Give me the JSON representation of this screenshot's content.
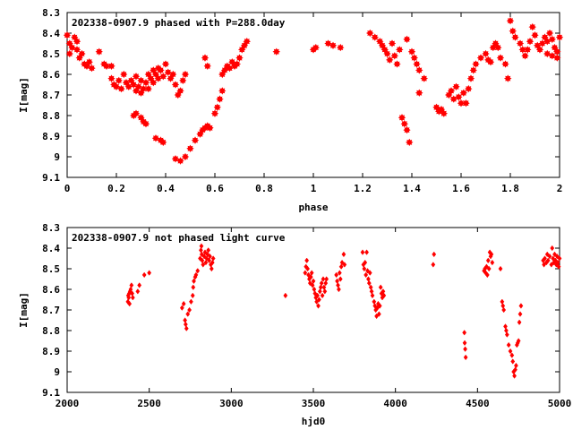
{
  "chart_data": [
    {
      "type": "scatter",
      "title": "202338-0907.9 phased with P=288.0day",
      "xlabel": "phase",
      "ylabel": "I[mag]",
      "xlim": [
        0,
        2
      ],
      "ylim": [
        9.1,
        8.3
      ],
      "y_inverted": true,
      "grid": false,
      "marker_color": "#ff0000",
      "marker": "filled-star",
      "x_ticks": [
        "0",
        "0.2",
        "0.4",
        "0.6",
        "0.8",
        "1",
        "1.2",
        "1.4",
        "1.6",
        "1.8",
        "2"
      ],
      "y_ticks": [
        "8.3",
        "8.4",
        "8.5",
        "8.6",
        "8.7",
        "8.8",
        "8.9",
        "9",
        "9.1"
      ],
      "points": [
        [
          0.0,
          8.41
        ],
        [
          0.01,
          8.45
        ],
        [
          0.01,
          8.5
        ],
        [
          0.02,
          8.47
        ],
        [
          0.03,
          8.42
        ],
        [
          0.04,
          8.44
        ],
        [
          0.04,
          8.48
        ],
        [
          0.05,
          8.52
        ],
        [
          0.06,
          8.5
        ],
        [
          0.07,
          8.55
        ],
        [
          0.08,
          8.56
        ],
        [
          0.09,
          8.54
        ],
        [
          0.1,
          8.57
        ],
        [
          0.13,
          8.49
        ],
        [
          0.15,
          8.55
        ],
        [
          0.16,
          8.56
        ],
        [
          0.18,
          8.56
        ],
        [
          0.18,
          8.62
        ],
        [
          0.19,
          8.65
        ],
        [
          0.2,
          8.66
        ],
        [
          0.21,
          8.63
        ],
        [
          0.22,
          8.67
        ],
        [
          0.23,
          8.6
        ],
        [
          0.24,
          8.64
        ],
        [
          0.25,
          8.66
        ],
        [
          0.26,
          8.63
        ],
        [
          0.27,
          8.65
        ],
        [
          0.28,
          8.61
        ],
        [
          0.28,
          8.68
        ],
        [
          0.29,
          8.66
        ],
        [
          0.3,
          8.63
        ],
        [
          0.3,
          8.69
        ],
        [
          0.31,
          8.67
        ],
        [
          0.32,
          8.64
        ],
        [
          0.33,
          8.6
        ],
        [
          0.33,
          8.67
        ],
        [
          0.34,
          8.62
        ],
        [
          0.35,
          8.58
        ],
        [
          0.35,
          8.64
        ],
        [
          0.36,
          8.6
        ],
        [
          0.37,
          8.57
        ],
        [
          0.37,
          8.62
        ],
        [
          0.38,
          8.58
        ],
        [
          0.39,
          8.61
        ],
        [
          0.4,
          8.55
        ],
        [
          0.41,
          8.59
        ],
        [
          0.42,
          8.62
        ],
        [
          0.43,
          8.6
        ],
        [
          0.44,
          8.65
        ],
        [
          0.45,
          8.7
        ],
        [
          0.46,
          8.68
        ],
        [
          0.47,
          8.63
        ],
        [
          0.48,
          8.6
        ],
        [
          0.27,
          8.8
        ],
        [
          0.28,
          8.79
        ],
        [
          0.3,
          8.81
        ],
        [
          0.31,
          8.83
        ],
        [
          0.32,
          8.84
        ],
        [
          0.36,
          8.91
        ],
        [
          0.38,
          8.92
        ],
        [
          0.39,
          8.93
        ],
        [
          0.44,
          9.01
        ],
        [
          0.46,
          9.02
        ],
        [
          0.48,
          9.0
        ],
        [
          0.5,
          8.96
        ],
        [
          0.52,
          8.92
        ],
        [
          0.54,
          8.89
        ],
        [
          0.55,
          8.87
        ],
        [
          0.56,
          8.86
        ],
        [
          0.57,
          8.85
        ],
        [
          0.58,
          8.86
        ],
        [
          0.6,
          8.79
        ],
        [
          0.61,
          8.76
        ],
        [
          0.62,
          8.72
        ],
        [
          0.63,
          8.68
        ],
        [
          0.63,
          8.6
        ],
        [
          0.64,
          8.58
        ],
        [
          0.65,
          8.56
        ],
        [
          0.66,
          8.57
        ],
        [
          0.67,
          8.54
        ],
        [
          0.68,
          8.56
        ],
        [
          0.69,
          8.55
        ],
        [
          0.7,
          8.52
        ],
        [
          0.71,
          8.48
        ],
        [
          0.72,
          8.46
        ],
        [
          0.73,
          8.44
        ],
        [
          0.56,
          8.52
        ],
        [
          0.57,
          8.56
        ],
        [
          0.85,
          8.49
        ],
        [
          1.0,
          8.48
        ],
        [
          1.01,
          8.47
        ],
        [
          1.06,
          8.45
        ],
        [
          1.08,
          8.46
        ],
        [
          1.11,
          8.47
        ],
        [
          1.23,
          8.4
        ],
        [
          1.25,
          8.42
        ],
        [
          1.27,
          8.44
        ],
        [
          1.28,
          8.46
        ],
        [
          1.29,
          8.48
        ],
        [
          1.3,
          8.5
        ],
        [
          1.31,
          8.53
        ],
        [
          1.32,
          8.45
        ],
        [
          1.33,
          8.51
        ],
        [
          1.34,
          8.55
        ],
        [
          1.35,
          8.48
        ],
        [
          1.36,
          8.81
        ],
        [
          1.37,
          8.84
        ],
        [
          1.38,
          8.87
        ],
        [
          1.39,
          8.93
        ],
        [
          1.38,
          8.43
        ],
        [
          1.4,
          8.49
        ],
        [
          1.41,
          8.52
        ],
        [
          1.42,
          8.55
        ],
        [
          1.43,
          8.58
        ],
        [
          1.43,
          8.69
        ],
        [
          1.45,
          8.62
        ],
        [
          1.5,
          8.76
        ],
        [
          1.51,
          8.78
        ],
        [
          1.52,
          8.77
        ],
        [
          1.53,
          8.79
        ],
        [
          1.55,
          8.7
        ],
        [
          1.56,
          8.68
        ],
        [
          1.57,
          8.72
        ],
        [
          1.58,
          8.66
        ],
        [
          1.59,
          8.71
        ],
        [
          1.6,
          8.74
        ],
        [
          1.61,
          8.69
        ],
        [
          1.62,
          8.74
        ],
        [
          1.63,
          8.67
        ],
        [
          1.64,
          8.62
        ],
        [
          1.65,
          8.58
        ],
        [
          1.66,
          8.55
        ],
        [
          1.68,
          8.52
        ],
        [
          1.7,
          8.5
        ],
        [
          1.71,
          8.53
        ],
        [
          1.72,
          8.54
        ],
        [
          1.73,
          8.47
        ],
        [
          1.74,
          8.45
        ],
        [
          1.75,
          8.47
        ],
        [
          1.76,
          8.52
        ],
        [
          1.78,
          8.55
        ],
        [
          1.79,
          8.62
        ],
        [
          1.8,
          8.34
        ],
        [
          1.81,
          8.39
        ],
        [
          1.82,
          8.42
        ],
        [
          1.84,
          8.45
        ],
        [
          1.85,
          8.48
        ],
        [
          1.86,
          8.51
        ],
        [
          1.87,
          8.48
        ],
        [
          1.88,
          8.44
        ],
        [
          1.89,
          8.37
        ],
        [
          1.9,
          8.41
        ],
        [
          1.91,
          8.46
        ],
        [
          1.92,
          8.48
        ],
        [
          1.93,
          8.45
        ],
        [
          1.94,
          8.42
        ],
        [
          1.95,
          8.44
        ],
        [
          1.96,
          8.4
        ],
        [
          1.97,
          8.43
        ],
        [
          1.97,
          8.51
        ],
        [
          1.98,
          8.47
        ],
        [
          1.99,
          8.49
        ],
        [
          1.99,
          8.52
        ],
        [
          2.0,
          8.42
        ],
        [
          1.95,
          8.5
        ]
      ]
    },
    {
      "type": "scatter",
      "title": "202338-0907.9 not phased light curve",
      "xlabel": "hjd0",
      "ylabel": "I[mag]",
      "xlim": [
        2000,
        5000
      ],
      "ylim": [
        9.1,
        8.3
      ],
      "y_inverted": true,
      "grid": false,
      "marker_color": "#ff0000",
      "marker": "filled-diamond",
      "x_ticks": [
        "2000",
        "2500",
        "3000",
        "3500",
        "4000",
        "4500",
        "5000"
      ],
      "y_ticks": [
        "8.3",
        "8.4",
        "8.5",
        "8.6",
        "8.7",
        "8.8",
        "8.9",
        "9",
        "9.1"
      ],
      "points": [
        [
          2370,
          8.66
        ],
        [
          2372,
          8.63
        ],
        [
          2375,
          8.64
        ],
        [
          2378,
          8.62
        ],
        [
          2380,
          8.67
        ],
        [
          2383,
          8.61
        ],
        [
          2387,
          8.6
        ],
        [
          2392,
          8.58
        ],
        [
          2396,
          8.62
        ],
        [
          2400,
          8.64
        ],
        [
          2430,
          8.61
        ],
        [
          2440,
          8.58
        ],
        [
          2470,
          8.53
        ],
        [
          2500,
          8.52
        ],
        [
          2700,
          8.69
        ],
        [
          2710,
          8.67
        ],
        [
          2718,
          8.75
        ],
        [
          2722,
          8.77
        ],
        [
          2727,
          8.79
        ],
        [
          2735,
          8.72
        ],
        [
          2745,
          8.7
        ],
        [
          2755,
          8.66
        ],
        [
          2765,
          8.63
        ],
        [
          2768,
          8.59
        ],
        [
          2772,
          8.56
        ],
        [
          2780,
          8.54
        ],
        [
          2785,
          8.53
        ],
        [
          2795,
          8.51
        ],
        [
          2810,
          8.45
        ],
        [
          2815,
          8.41
        ],
        [
          2818,
          8.39
        ],
        [
          2820,
          8.43
        ],
        [
          2823,
          8.46
        ],
        [
          2828,
          8.48
        ],
        [
          2835,
          8.44
        ],
        [
          2840,
          8.42
        ],
        [
          2845,
          8.47
        ],
        [
          2850,
          8.45
        ],
        [
          2855,
          8.43
        ],
        [
          2860,
          8.41
        ],
        [
          2865,
          8.46
        ],
        [
          2870,
          8.44
        ],
        [
          2875,
          8.48
        ],
        [
          2880,
          8.5
        ],
        [
          2885,
          8.47
        ],
        [
          2890,
          8.45
        ],
        [
          3330,
          8.63
        ],
        [
          3450,
          8.52
        ],
        [
          3455,
          8.49
        ],
        [
          3460,
          8.46
        ],
        [
          3465,
          8.5
        ],
        [
          3470,
          8.53
        ],
        [
          3475,
          8.55
        ],
        [
          3480,
          8.57
        ],
        [
          3485,
          8.54
        ],
        [
          3490,
          8.52
        ],
        [
          3495,
          8.58
        ],
        [
          3500,
          8.56
        ],
        [
          3505,
          8.6
        ],
        [
          3510,
          8.62
        ],
        [
          3515,
          8.64
        ],
        [
          3520,
          8.66
        ],
        [
          3525,
          8.63
        ],
        [
          3530,
          8.68
        ],
        [
          3535,
          8.65
        ],
        [
          3540,
          8.61
        ],
        [
          3545,
          8.59
        ],
        [
          3550,
          8.57
        ],
        [
          3555,
          8.63
        ],
        [
          3560,
          8.55
        ],
        [
          3565,
          8.59
        ],
        [
          3570,
          8.61
        ],
        [
          3575,
          8.57
        ],
        [
          3580,
          8.55
        ],
        [
          3640,
          8.53
        ],
        [
          3645,
          8.56
        ],
        [
          3650,
          8.58
        ],
        [
          3655,
          8.6
        ],
        [
          3660,
          8.52
        ],
        [
          3665,
          8.55
        ],
        [
          3670,
          8.49
        ],
        [
          3675,
          8.47
        ],
        [
          3685,
          8.43
        ],
        [
          3690,
          8.48
        ],
        [
          3800,
          8.42
        ],
        [
          3805,
          8.48
        ],
        [
          3810,
          8.5
        ],
        [
          3815,
          8.47
        ],
        [
          3820,
          8.53
        ],
        [
          3825,
          8.42
        ],
        [
          3830,
          8.51
        ],
        [
          3835,
          8.55
        ],
        [
          3840,
          8.57
        ],
        [
          3845,
          8.52
        ],
        [
          3850,
          8.59
        ],
        [
          3855,
          8.61
        ],
        [
          3860,
          8.63
        ],
        [
          3870,
          8.66
        ],
        [
          3875,
          8.68
        ],
        [
          3880,
          8.7
        ],
        [
          3885,
          8.73
        ],
        [
          3890,
          8.69
        ],
        [
          3895,
          8.67
        ],
        [
          3900,
          8.72
        ],
        [
          3905,
          8.68
        ],
        [
          3910,
          8.59
        ],
        [
          3915,
          8.62
        ],
        [
          3920,
          8.64
        ],
        [
          3925,
          8.61
        ],
        [
          3930,
          8.63
        ],
        [
          4230,
          8.48
        ],
        [
          4235,
          8.43
        ],
        [
          4420,
          8.81
        ],
        [
          4422,
          8.86
        ],
        [
          4425,
          8.89
        ],
        [
          4428,
          8.93
        ],
        [
          4540,
          8.51
        ],
        [
          4545,
          8.5
        ],
        [
          4550,
          8.52
        ],
        [
          4555,
          8.49
        ],
        [
          4560,
          8.53
        ],
        [
          4565,
          8.46
        ],
        [
          4570,
          8.5
        ],
        [
          4575,
          8.42
        ],
        [
          4580,
          8.44
        ],
        [
          4585,
          8.43
        ],
        [
          4590,
          8.47
        ],
        [
          4640,
          8.5
        ],
        [
          4650,
          8.66
        ],
        [
          4655,
          8.68
        ],
        [
          4660,
          8.7
        ],
        [
          4670,
          8.78
        ],
        [
          4675,
          8.8
        ],
        [
          4680,
          8.82
        ],
        [
          4690,
          8.87
        ],
        [
          4700,
          8.9
        ],
        [
          4710,
          8.92
        ],
        [
          4715,
          8.95
        ],
        [
          4720,
          9.0
        ],
        [
          4725,
          9.02
        ],
        [
          4730,
          8.99
        ],
        [
          4735,
          8.97
        ],
        [
          4740,
          8.87
        ],
        [
          4745,
          8.86
        ],
        [
          4750,
          8.85
        ],
        [
          4755,
          8.76
        ],
        [
          4760,
          8.72
        ],
        [
          4765,
          8.68
        ],
        [
          4900,
          8.46
        ],
        [
          4905,
          8.48
        ],
        [
          4910,
          8.45
        ],
        [
          4920,
          8.47
        ],
        [
          4925,
          8.43
        ],
        [
          4930,
          8.46
        ],
        [
          4940,
          8.44
        ],
        [
          4950,
          8.48
        ],
        [
          4955,
          8.4
        ],
        [
          4960,
          8.45
        ],
        [
          4965,
          8.47
        ],
        [
          4970,
          8.43
        ],
        [
          4975,
          8.46
        ],
        [
          4980,
          8.48
        ],
        [
          4985,
          8.44
        ],
        [
          4990,
          8.47
        ],
        [
          4995,
          8.49
        ],
        [
          5000,
          8.45
        ]
      ]
    }
  ]
}
